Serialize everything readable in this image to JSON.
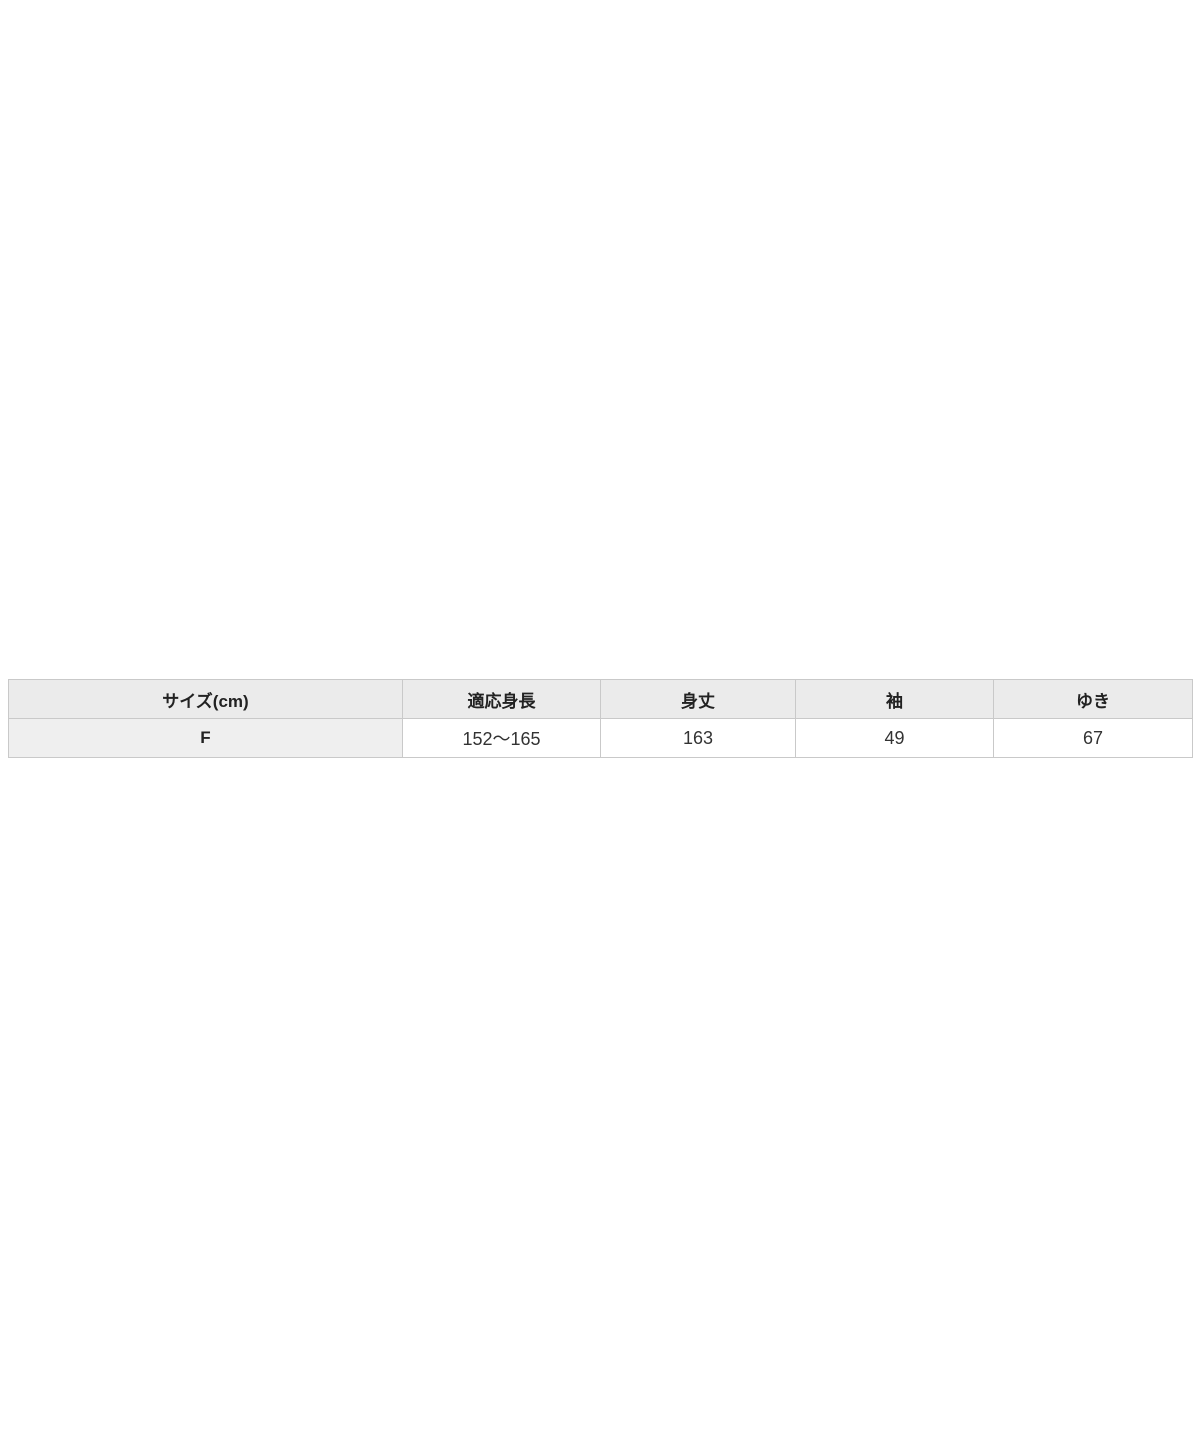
{
  "page": {
    "background_color": "#ffffff"
  },
  "size_table": {
    "headers": [
      "サイズ(cm)",
      "適応身長",
      "身丈",
      "袖",
      "ゆき"
    ],
    "rows": [
      [
        "F",
        "152～165",
        "163",
        "49",
        "67"
      ]
    ],
    "colors": {
      "header_bg": "#ebebeb",
      "row_label_bg": "#efefef",
      "border": "#c9c9c9",
      "header_text": "#222222",
      "body_text": "#333333"
    }
  },
  "chart_data": {
    "type": "table",
    "columns": [
      "サイズ(cm)",
      "適応身長",
      "身丈",
      "袖",
      "ゆき"
    ],
    "rows": [
      [
        "F",
        "152～165",
        "163",
        "49",
        "67"
      ]
    ],
    "title": ""
  }
}
